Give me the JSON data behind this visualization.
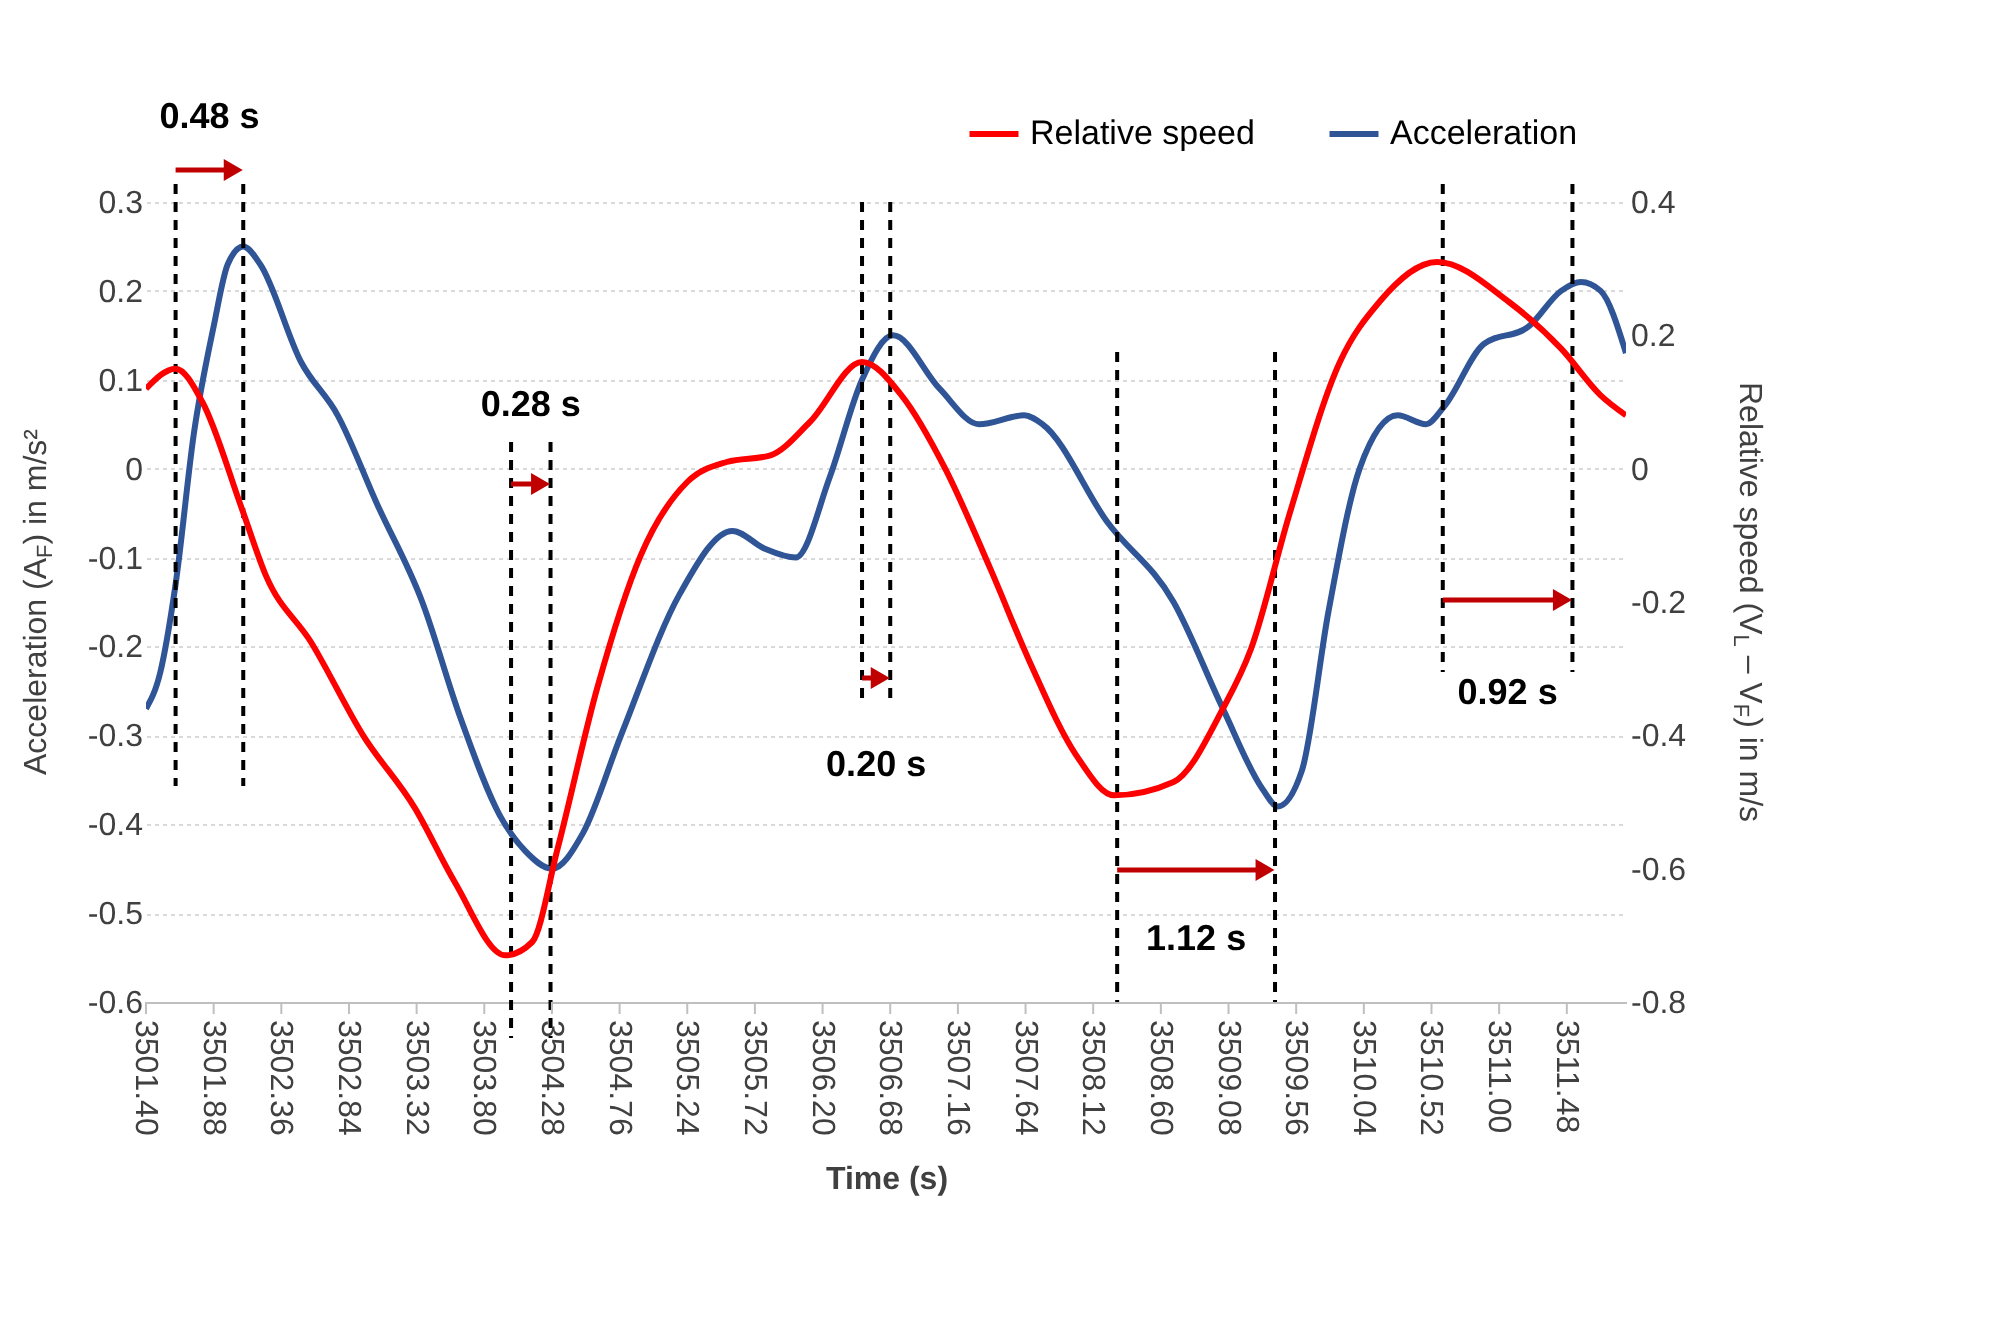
{
  "chart_data": {
    "type": "line",
    "xlabel": "Time (s)",
    "ylabel": "Acceleration (A$_{F}$) in m/s²",
    "y2label": "Relative speed (V$_{L}$ – V$_{F}$) in m/s",
    "xlim": [
      3501.4,
      3511.9
    ],
    "ylim": [
      -0.6,
      0.3
    ],
    "yticks": [
      -0.6,
      -0.5,
      -0.4,
      -0.3,
      -0.2,
      -0.1,
      0,
      0.1,
      0.2,
      0.3
    ],
    "y2lim": [
      -0.8,
      0.4
    ],
    "y2ticks": [
      -0.8,
      -0.6,
      -0.4,
      -0.2,
      0,
      0.2,
      0.4
    ],
    "xticks": [
      {
        "value": 3501.4,
        "label": "3501.40"
      },
      {
        "value": 3501.88,
        "label": "3501.88"
      },
      {
        "value": 3502.36,
        "label": "3502.36"
      },
      {
        "value": 3502.84,
        "label": "3502.84"
      },
      {
        "value": 3503.32,
        "label": "3503.32"
      },
      {
        "value": 3503.8,
        "label": "3503.80"
      },
      {
        "value": 3504.28,
        "label": "3504.28"
      },
      {
        "value": 3504.76,
        "label": "3504.76"
      },
      {
        "value": 3505.24,
        "label": "3505.24"
      },
      {
        "value": 3505.72,
        "label": "3505.72"
      },
      {
        "value": 3506.2,
        "label": "3506.20"
      },
      {
        "value": 3506.68,
        "label": "3506.68"
      },
      {
        "value": 3507.16,
        "label": "3507.16"
      },
      {
        "value": 3507.64,
        "label": "3507.64"
      },
      {
        "value": 3508.12,
        "label": "3508.12"
      },
      {
        "value": 3508.6,
        "label": "3508.60"
      },
      {
        "value": 3509.08,
        "label": "3509.08"
      },
      {
        "value": 3509.56,
        "label": "3509.56"
      },
      {
        "value": 3510.04,
        "label": "3510.04"
      },
      {
        "value": 3510.52,
        "label": "3510.52"
      },
      {
        "value": 3511.0,
        "label": "3511.00"
      },
      {
        "value": 3511.48,
        "label": "3511.48"
      }
    ],
    "grid": "y",
    "legend": "top right",
    "line_style": "solid",
    "marker": "none",
    "series": [
      {
        "name": "Relative speed",
        "color": "#ff0000",
        "axis": "y2",
        "x": [
          3501.4,
          3501.61,
          3501.8,
          3502.08,
          3502.25,
          3502.57,
          3502.94,
          3503.31,
          3503.59,
          3503.95,
          3504.14,
          3504.32,
          3504.6,
          3504.91,
          3505.24,
          3505.52,
          3505.83,
          3506.11,
          3506.48,
          3506.76,
          3507.07,
          3507.39,
          3507.67,
          3508.0,
          3508.27,
          3508.69,
          3509.04,
          3509.24,
          3509.51,
          3509.87,
          3510.15,
          3510.56,
          3511.07,
          3511.44,
          3511.72,
          3511.9
        ],
        "values": [
          0.12,
          0.15,
          0.1,
          -0.06,
          -0.16,
          -0.26,
          -0.4,
          -0.51,
          -0.62,
          -0.73,
          -0.71,
          -0.57,
          -0.33,
          -0.13,
          -0.02,
          0.01,
          0.02,
          0.07,
          0.16,
          0.11,
          0.0,
          -0.15,
          -0.29,
          -0.43,
          -0.49,
          -0.47,
          -0.36,
          -0.27,
          -0.07,
          0.16,
          0.25,
          0.31,
          0.25,
          0.18,
          0.11,
          0.08
        ]
      },
      {
        "name": "Acceleration",
        "color": "#2f5597",
        "x": [
          3501.4,
          3501.5,
          3501.61,
          3501.74,
          3501.88,
          3501.98,
          3502.09,
          3502.21,
          3502.5,
          3502.76,
          3503.04,
          3503.36,
          3503.63,
          3503.91,
          3504.09,
          3504.28,
          3504.5,
          3504.77,
          3505.19,
          3505.56,
          3505.79,
          3506.01,
          3506.25,
          3506.48,
          3506.7,
          3507.03,
          3507.31,
          3507.63,
          3507.76,
          3508.22,
          3508.69,
          3509.04,
          3509.32,
          3509.43,
          3509.6,
          3509.79,
          3510.01,
          3510.28,
          3510.48,
          3510.61,
          3510.89,
          3511.21,
          3511.44,
          3511.58,
          3511.72,
          3511.9
        ],
        "values": [
          -0.27,
          -0.23,
          -0.13,
          0.04,
          0.16,
          0.23,
          0.25,
          0.23,
          0.12,
          0.06,
          -0.04,
          -0.15,
          -0.28,
          -0.39,
          -0.43,
          -0.45,
          -0.41,
          -0.3,
          -0.14,
          -0.07,
          -0.09,
          -0.1,
          -0.01,
          0.1,
          0.15,
          0.09,
          0.05,
          0.06,
          0.05,
          -0.06,
          -0.15,
          -0.27,
          -0.36,
          -0.38,
          -0.34,
          -0.16,
          0.0,
          0.06,
          0.05,
          0.07,
          0.14,
          0.16,
          0.2,
          0.21,
          0.2,
          0.13
        ]
      }
    ],
    "ref_lines": [
      {
        "axis": "x",
        "value": 3501.61,
        "color": "#000000",
        "line_style": "dashed",
        "label": "0.48 s"
      },
      {
        "axis": "x",
        "value": 3502.09,
        "color": "#000000",
        "line_style": "dashed"
      },
      {
        "axis": "x",
        "value": 3503.99,
        "color": "#000000",
        "line_style": "dashed",
        "label": "0.28 s"
      },
      {
        "axis": "x",
        "value": 3504.27,
        "color": "#000000",
        "line_style": "dashed"
      },
      {
        "axis": "x",
        "value": 3506.48,
        "color": "#000000",
        "line_style": "dashed",
        "label": "0.20 s"
      },
      {
        "axis": "x",
        "value": 3506.68,
        "color": "#000000",
        "line_style": "dashed"
      },
      {
        "axis": "x",
        "value": 3508.29,
        "color": "#000000",
        "line_style": "dashed",
        "label": "1.12 s"
      },
      {
        "axis": "x",
        "value": 3509.41,
        "color": "#000000",
        "line_style": "dashed"
      },
      {
        "axis": "x",
        "value": 3510.6,
        "color": "#000000",
        "line_style": "dashed",
        "label": "0.92 s"
      },
      {
        "axis": "x",
        "value": 3511.52,
        "color": "#000000",
        "line_style": "dashed"
      }
    ]
  }
}
